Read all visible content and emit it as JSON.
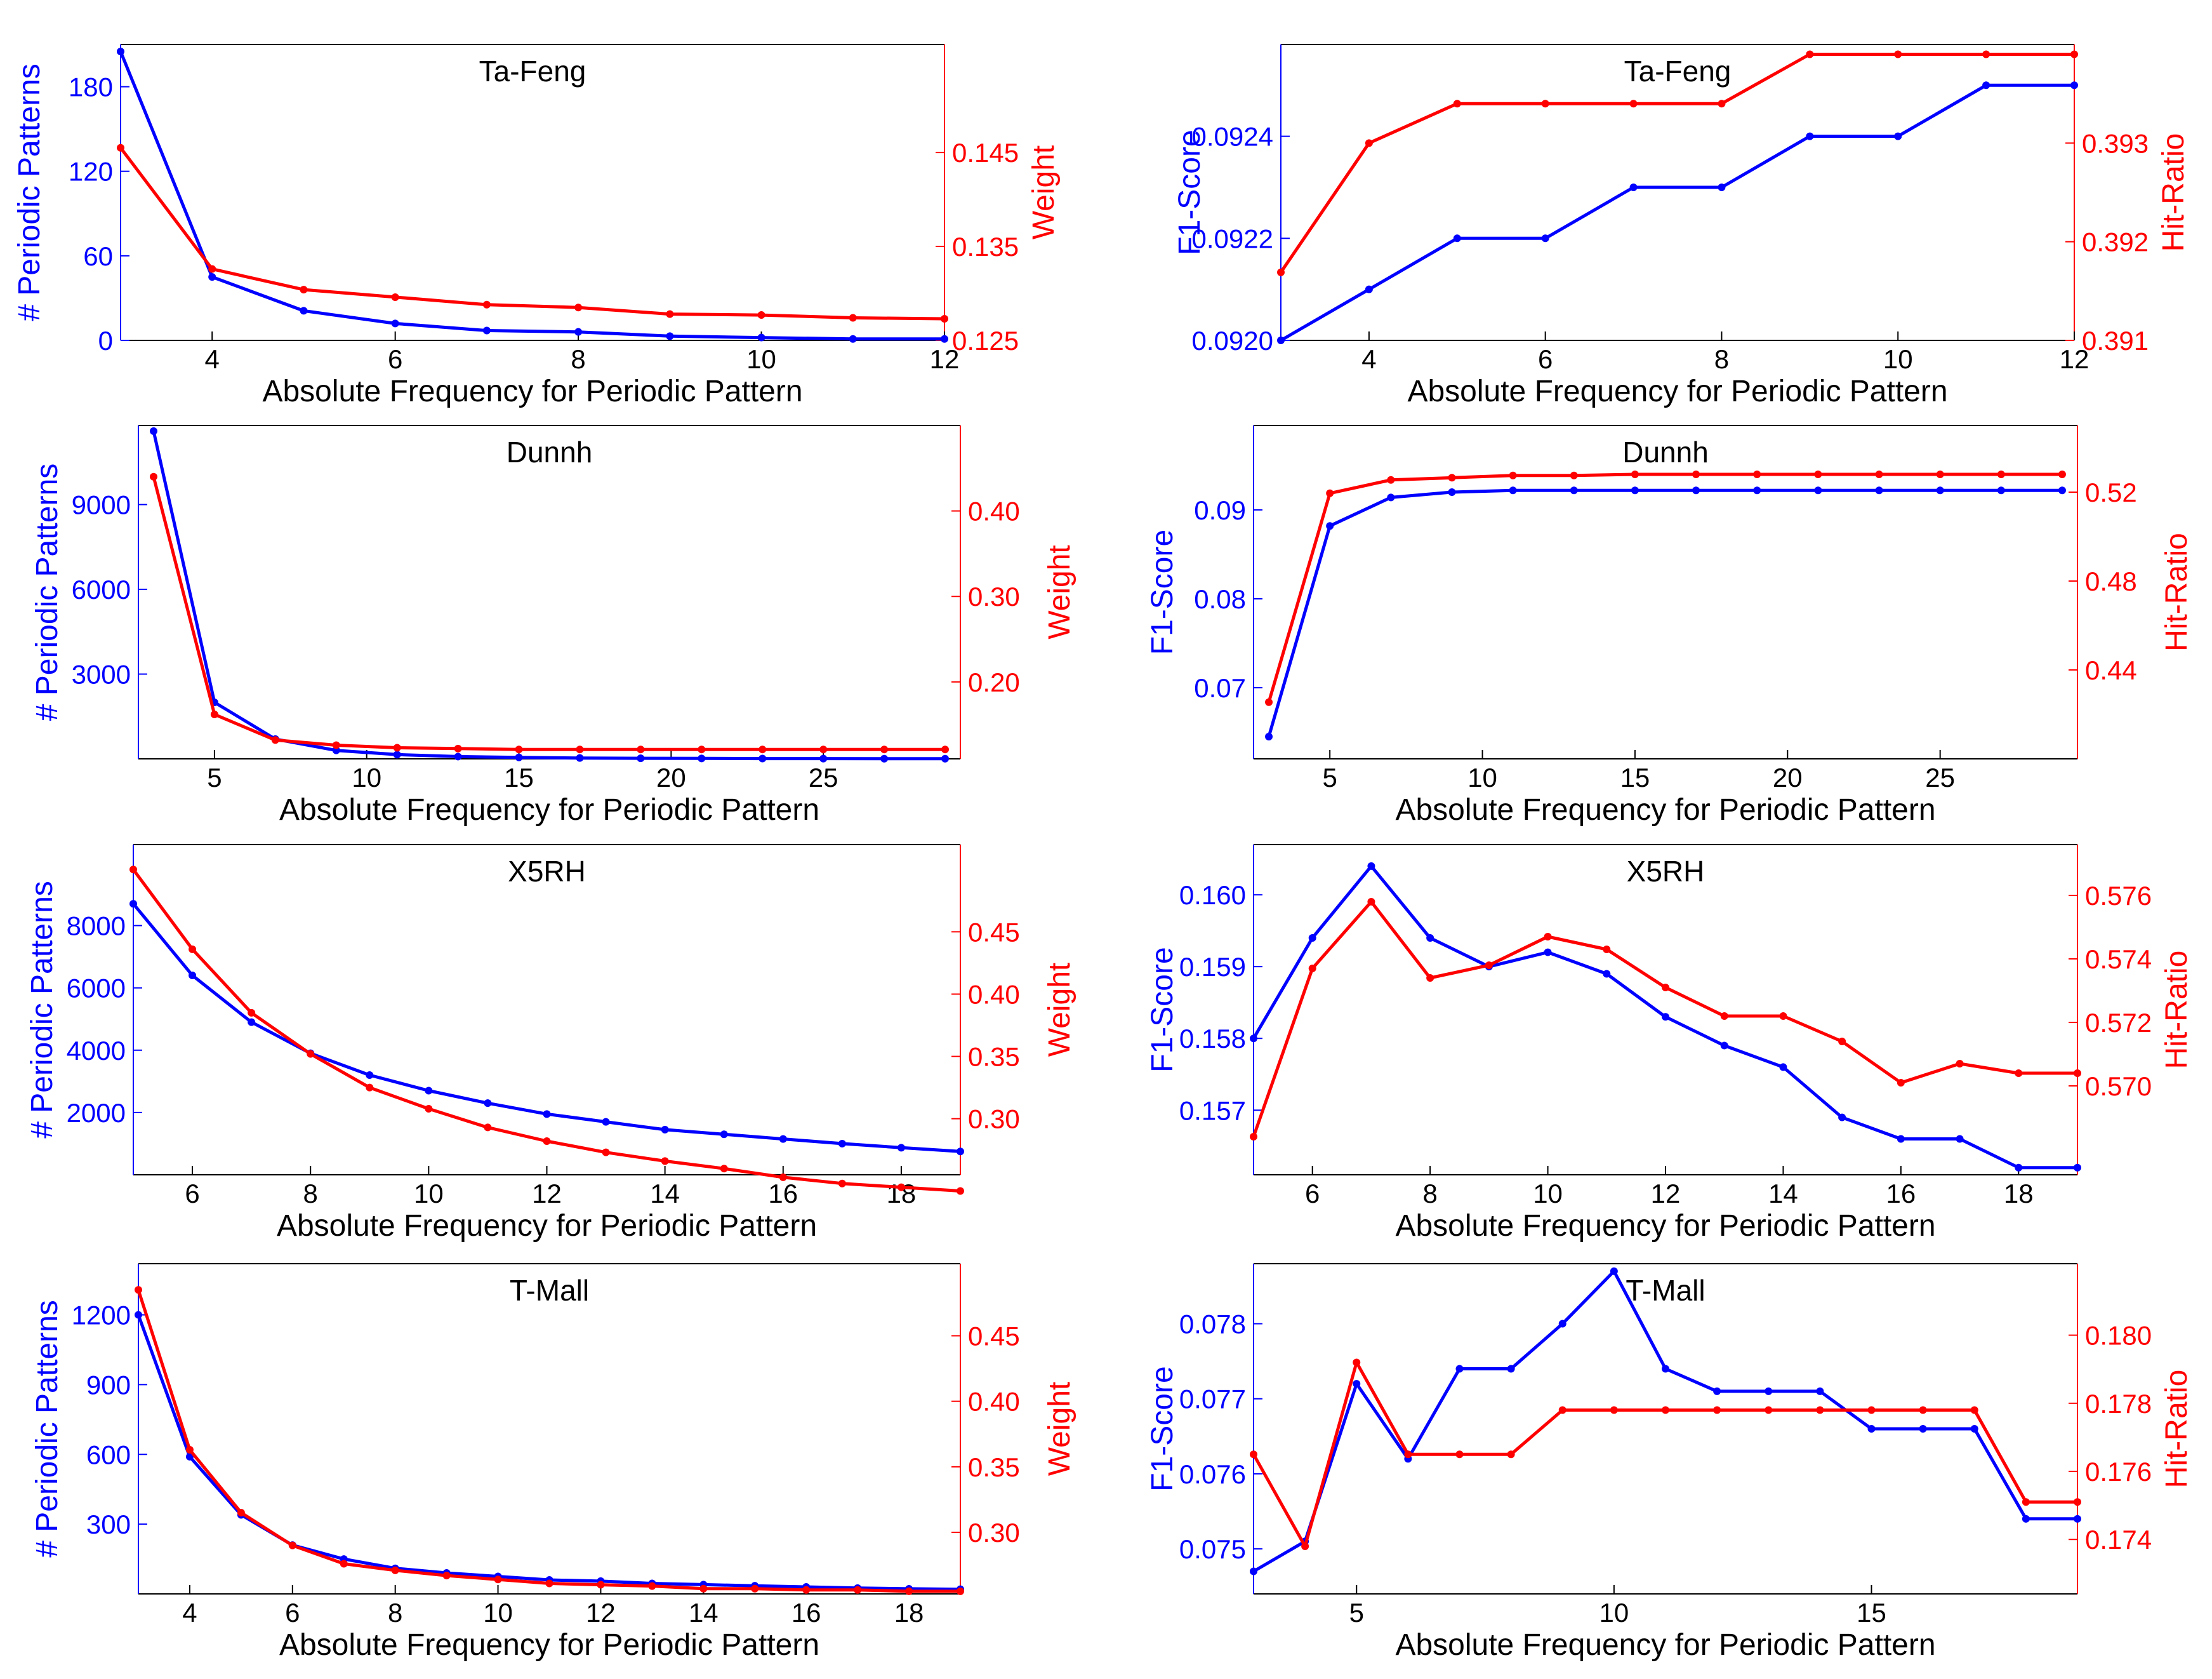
{
  "colors": {
    "left": "#0000ff",
    "right": "#ff0000",
    "axis": "#000000"
  },
  "chart_data": [
    {
      "type": "line",
      "title": "Ta-Feng",
      "xlabel": "Absolute Frequency for Periodic Pattern",
      "ylabel_left": "# Periodic Patterns",
      "ylabel_right": "Weight",
      "x": [
        3,
        4,
        5,
        6,
        7,
        8,
        9,
        10,
        11,
        12
      ],
      "xlim": [
        3,
        12
      ],
      "xticks": [
        4,
        6,
        8,
        10,
        12
      ],
      "xtick_labels": [
        "4",
        "6",
        "8",
        "10",
        "12"
      ],
      "left_axis": {
        "ylim": [
          0,
          210
        ],
        "ticks": [
          0,
          60,
          120,
          180
        ],
        "tick_labels": [
          "0",
          "60",
          "120",
          "180"
        ]
      },
      "right_axis": {
        "ylim": [
          0.125,
          0.1565
        ],
        "ticks": [
          0.125,
          0.135,
          0.145
        ],
        "tick_labels": [
          "0.125",
          "0.135",
          "0.145"
        ]
      },
      "series": [
        {
          "name": "# Periodic Patterns",
          "axis": "left",
          "values": [
            205,
            45,
            21,
            12,
            7,
            6,
            3,
            2,
            1,
            1
          ]
        },
        {
          "name": "Weight",
          "axis": "right",
          "values": [
            0.1455,
            0.1326,
            0.1304,
            0.1296,
            0.1288,
            0.1285,
            0.1278,
            0.1277,
            0.1274,
            0.1273
          ]
        }
      ]
    },
    {
      "type": "line",
      "title": "Ta-Feng",
      "xlabel": "Absolute Frequency for Periodic Pattern",
      "ylabel_left": "F1-Score",
      "ylabel_right": "Hit-Ratio",
      "x": [
        3,
        4,
        5,
        6,
        7,
        8,
        9,
        10,
        11,
        12
      ],
      "xlim": [
        3,
        12
      ],
      "xticks": [
        4,
        6,
        8,
        10,
        12
      ],
      "xtick_labels": [
        "4",
        "6",
        "8",
        "10",
        "12"
      ],
      "left_axis": {
        "ylim": [
          0.092,
          0.09258
        ],
        "ticks": [
          0.092,
          0.0922,
          0.0924
        ],
        "tick_labels": [
          "0.0920",
          "0.0922",
          "0.0924"
        ]
      },
      "right_axis": {
        "ylim": [
          0.391,
          0.394
        ],
        "ticks": [
          0.391,
          0.392,
          0.393
        ],
        "tick_labels": [
          "0.391",
          "0.392",
          "0.393"
        ]
      },
      "series": [
        {
          "name": "F1-Score",
          "axis": "left",
          "values": [
            0.092,
            0.0921,
            0.0922,
            0.0922,
            0.0923,
            0.0923,
            0.0924,
            0.0924,
            0.0925,
            0.0925
          ]
        },
        {
          "name": "Hit-Ratio",
          "axis": "right",
          "values": [
            0.39169,
            0.393,
            0.3934,
            0.3934,
            0.3934,
            0.3934,
            0.3939,
            0.3939,
            0.3939,
            0.3939
          ]
        }
      ]
    },
    {
      "type": "line",
      "title": "Dunnh",
      "xlabel": "Absolute Frequency for Periodic Pattern",
      "ylabel_left": "# Periodic Patterns",
      "ylabel_right": "Weight",
      "x": [
        3,
        5,
        7,
        9,
        11,
        13,
        15,
        17,
        19,
        21,
        23,
        25,
        27,
        29
      ],
      "xlim": [
        2.5,
        29.5
      ],
      "xticks": [
        5,
        10,
        15,
        20,
        25
      ],
      "xtick_labels": [
        "5",
        "10",
        "15",
        "20",
        "25"
      ],
      "left_axis": {
        "ylim": [
          0,
          11800
        ],
        "ticks": [
          3000,
          6000,
          9000
        ],
        "tick_labels": [
          "3000",
          "6000",
          "9000"
        ]
      },
      "right_axis": {
        "ylim": [
          0.11,
          0.5
        ],
        "ticks": [
          0.2,
          0.3,
          0.4
        ],
        "tick_labels": [
          "0.20",
          "0.30",
          "0.40"
        ]
      },
      "series": [
        {
          "name": "# Periodic Patterns",
          "axis": "left",
          "values": [
            11600,
            2000,
            700,
            300,
            150,
            80,
            50,
            30,
            20,
            15,
            10,
            8,
            5,
            5
          ]
        },
        {
          "name": "Weight",
          "axis": "right",
          "values": [
            0.44,
            0.162,
            0.132,
            0.126,
            0.123,
            0.122,
            0.121,
            0.121,
            0.121,
            0.121,
            0.121,
            0.121,
            0.121,
            0.121
          ]
        }
      ]
    },
    {
      "type": "line",
      "title": "Dunnh",
      "xlabel": "Absolute Frequency for Periodic Pattern",
      "ylabel_left": "F1-Score",
      "ylabel_right": "Hit-Ratio",
      "x": [
        3,
        5,
        7,
        9,
        11,
        13,
        15,
        17,
        19,
        21,
        23,
        25,
        27,
        29
      ],
      "xlim": [
        2.5,
        29.5
      ],
      "xticks": [
        5,
        10,
        15,
        20,
        25
      ],
      "xtick_labels": [
        "5",
        "10",
        "15",
        "20",
        "25"
      ],
      "left_axis": {
        "ylim": [
          0.062,
          0.0995
        ],
        "ticks": [
          0.07,
          0.08,
          0.09
        ],
        "tick_labels": [
          "0.07",
          "0.08",
          "0.09"
        ]
      },
      "right_axis": {
        "ylim": [
          0.4,
          0.55
        ],
        "ticks": [
          0.44,
          0.48,
          0.52
        ],
        "tick_labels": [
          "0.44",
          "0.48",
          "0.52"
        ]
      },
      "series": [
        {
          "name": "F1-Score",
          "axis": "left",
          "values": [
            0.0645,
            0.0882,
            0.0914,
            0.092,
            0.0922,
            0.0922,
            0.0922,
            0.0922,
            0.0922,
            0.0922,
            0.0922,
            0.0922,
            0.0922,
            0.0922
          ]
        },
        {
          "name": "Hit-Ratio",
          "axis": "right",
          "values": [
            0.4255,
            0.5195,
            0.5255,
            0.5265,
            0.5275,
            0.5275,
            0.528,
            0.528,
            0.528,
            0.528,
            0.528,
            0.528,
            0.528,
            0.528
          ]
        }
      ]
    },
    {
      "type": "line",
      "title": "X5RH",
      "xlabel": "Absolute Frequency for Periodic Pattern",
      "ylabel_left": "# Periodic Patterns",
      "ylabel_right": "Weight",
      "x": [
        5,
        6,
        7,
        8,
        9,
        10,
        11,
        12,
        13,
        14,
        15,
        16,
        17,
        18,
        19
      ],
      "xlim": [
        5,
        19
      ],
      "xticks": [
        6,
        8,
        10,
        12,
        14,
        16,
        18
      ],
      "xtick_labels": [
        "6",
        "8",
        "10",
        "12",
        "14",
        "16",
        "18"
      ],
      "left_axis": {
        "ylim": [
          0,
          10600
        ],
        "ticks": [
          2000,
          4000,
          6000,
          8000
        ],
        "tick_labels": [
          "2000",
          "4000",
          "6000",
          "8000"
        ]
      },
      "right_axis": {
        "ylim": [
          0.255,
          0.52
        ],
        "ticks": [
          0.3,
          0.35,
          0.4,
          0.45
        ],
        "tick_labels": [
          "0.30",
          "0.35",
          "0.40",
          "0.45"
        ]
      },
      "series": [
        {
          "name": "# Periodic Patterns",
          "axis": "left",
          "values": [
            8700,
            6400,
            4900,
            3900,
            3200,
            2700,
            2300,
            1950,
            1700,
            1450,
            1300,
            1150,
            1000,
            870,
            750
          ]
        },
        {
          "name": "Weight",
          "axis": "right",
          "values": [
            0.5,
            0.436,
            0.385,
            0.352,
            0.325,
            0.308,
            0.293,
            0.282,
            0.273,
            0.266,
            0.26,
            0.253,
            0.248,
            0.245,
            0.242
          ]
        }
      ]
    },
    {
      "type": "line",
      "title": "X5RH",
      "xlabel": "Absolute Frequency for Periodic Pattern",
      "ylabel_left": "F1-Score",
      "ylabel_right": "Hit-Ratio",
      "x": [
        5,
        6,
        7,
        8,
        9,
        10,
        11,
        12,
        13,
        14,
        15,
        16,
        17,
        18,
        19
      ],
      "xlim": [
        5,
        19
      ],
      "xticks": [
        6,
        8,
        10,
        12,
        14,
        16,
        18
      ],
      "xtick_labels": [
        "6",
        "8",
        "10",
        "12",
        "14",
        "16",
        "18"
      ],
      "left_axis": {
        "ylim": [
          0.1561,
          0.1607
        ],
        "ticks": [
          0.157,
          0.158,
          0.159,
          0.16
        ],
        "tick_labels": [
          "0.157",
          "0.158",
          "0.159",
          "0.160"
        ]
      },
      "right_axis": {
        "ylim": [
          0.5672,
          0.5776
        ],
        "ticks": [
          0.57,
          0.572,
          0.574,
          0.576
        ],
        "tick_labels": [
          "0.570",
          "0.572",
          "0.574",
          "0.576"
        ]
      },
      "series": [
        {
          "name": "F1-Score",
          "axis": "left",
          "values": [
            0.158,
            0.1594,
            0.1604,
            0.1594,
            0.159,
            0.1592,
            0.1589,
            0.1583,
            0.1579,
            0.1576,
            0.1569,
            0.1566,
            0.1566,
            0.1562,
            0.1562
          ]
        },
        {
          "name": "Hit-Ratio",
          "axis": "right",
          "values": [
            0.5684,
            0.5737,
            0.5758,
            0.5734,
            0.5738,
            0.5747,
            0.5743,
            0.5731,
            0.5722,
            0.5722,
            0.5714,
            0.5701,
            0.5707,
            0.5704,
            0.5704
          ]
        }
      ]
    },
    {
      "type": "line",
      "title": "T-Mall",
      "xlabel": "Absolute Frequency for Periodic Pattern",
      "ylabel_left": "# Periodic Patterns",
      "ylabel_right": "Weight",
      "x": [
        3,
        4,
        5,
        6,
        7,
        8,
        9,
        10,
        11,
        12,
        13,
        14,
        15,
        16,
        17,
        18,
        19
      ],
      "xlim": [
        3,
        19
      ],
      "xticks": [
        4,
        6,
        8,
        10,
        12,
        14,
        16,
        18
      ],
      "xtick_labels": [
        "4",
        "6",
        "8",
        "10",
        "12",
        "14",
        "16",
        "18"
      ],
      "left_axis": {
        "ylim": [
          0,
          1420
        ],
        "ticks": [
          300,
          600,
          900,
          1200
        ],
        "tick_labels": [
          "300",
          "600",
          "900",
          "1200"
        ]
      },
      "right_axis": {
        "ylim": [
          0.253,
          0.505
        ],
        "ticks": [
          0.3,
          0.35,
          0.4,
          0.45
        ],
        "tick_labels": [
          "0.30",
          "0.35",
          "0.40",
          "0.45"
        ]
      },
      "series": [
        {
          "name": "# Periodic Patterns",
          "axis": "left",
          "values": [
            1200,
            590,
            340,
            210,
            150,
            110,
            90,
            75,
            60,
            55,
            45,
            40,
            35,
            30,
            25,
            22,
            20
          ]
        },
        {
          "name": "Weight",
          "axis": "right",
          "values": [
            0.485,
            0.363,
            0.315,
            0.29,
            0.276,
            0.271,
            0.267,
            0.264,
            0.261,
            0.26,
            0.259,
            0.257,
            0.257,
            0.256,
            0.256,
            0.255,
            0.255
          ]
        }
      ]
    },
    {
      "type": "line",
      "title": "T-Mall",
      "xlabel": "Absolute Frequency for Periodic Pattern",
      "ylabel_left": "F1-Score",
      "ylabel_right": "Hit-Ratio",
      "x": [
        3,
        4,
        5,
        6,
        7,
        8,
        9,
        10,
        11,
        12,
        13,
        14,
        15,
        16,
        17,
        18,
        19
      ],
      "xlim": [
        3,
        19
      ],
      "xticks": [
        5,
        10,
        15
      ],
      "xtick_labels": [
        "5",
        "10",
        "15"
      ],
      "left_axis": {
        "ylim": [
          0.0744,
          0.0788
        ],
        "ticks": [
          0.075,
          0.076,
          0.077,
          0.078
        ],
        "tick_labels": [
          "0.075",
          "0.076",
          "0.077",
          "0.078"
        ]
      },
      "right_axis": {
        "ylim": [
          0.1724,
          0.1821
        ],
        "ticks": [
          0.174,
          0.176,
          0.178,
          0.18
        ],
        "tick_labels": [
          "0.174",
          "0.176",
          "0.178",
          "0.180"
        ]
      },
      "series": [
        {
          "name": "F1-Score",
          "axis": "left",
          "values": [
            0.0747,
            0.0751,
            0.0772,
            0.0762,
            0.0774,
            0.0774,
            0.078,
            0.0787,
            0.0774,
            0.0771,
            0.0771,
            0.0771,
            0.0766,
            0.0766,
            0.0766,
            0.0754,
            0.0754
          ]
        },
        {
          "name": "Hit-Ratio",
          "axis": "right",
          "values": [
            0.1765,
            0.1738,
            0.1792,
            0.1765,
            0.1765,
            0.1765,
            0.1778,
            0.1778,
            0.1778,
            0.1778,
            0.1778,
            0.1778,
            0.1778,
            0.1778,
            0.1778,
            0.1751,
            0.1751
          ]
        }
      ]
    }
  ]
}
